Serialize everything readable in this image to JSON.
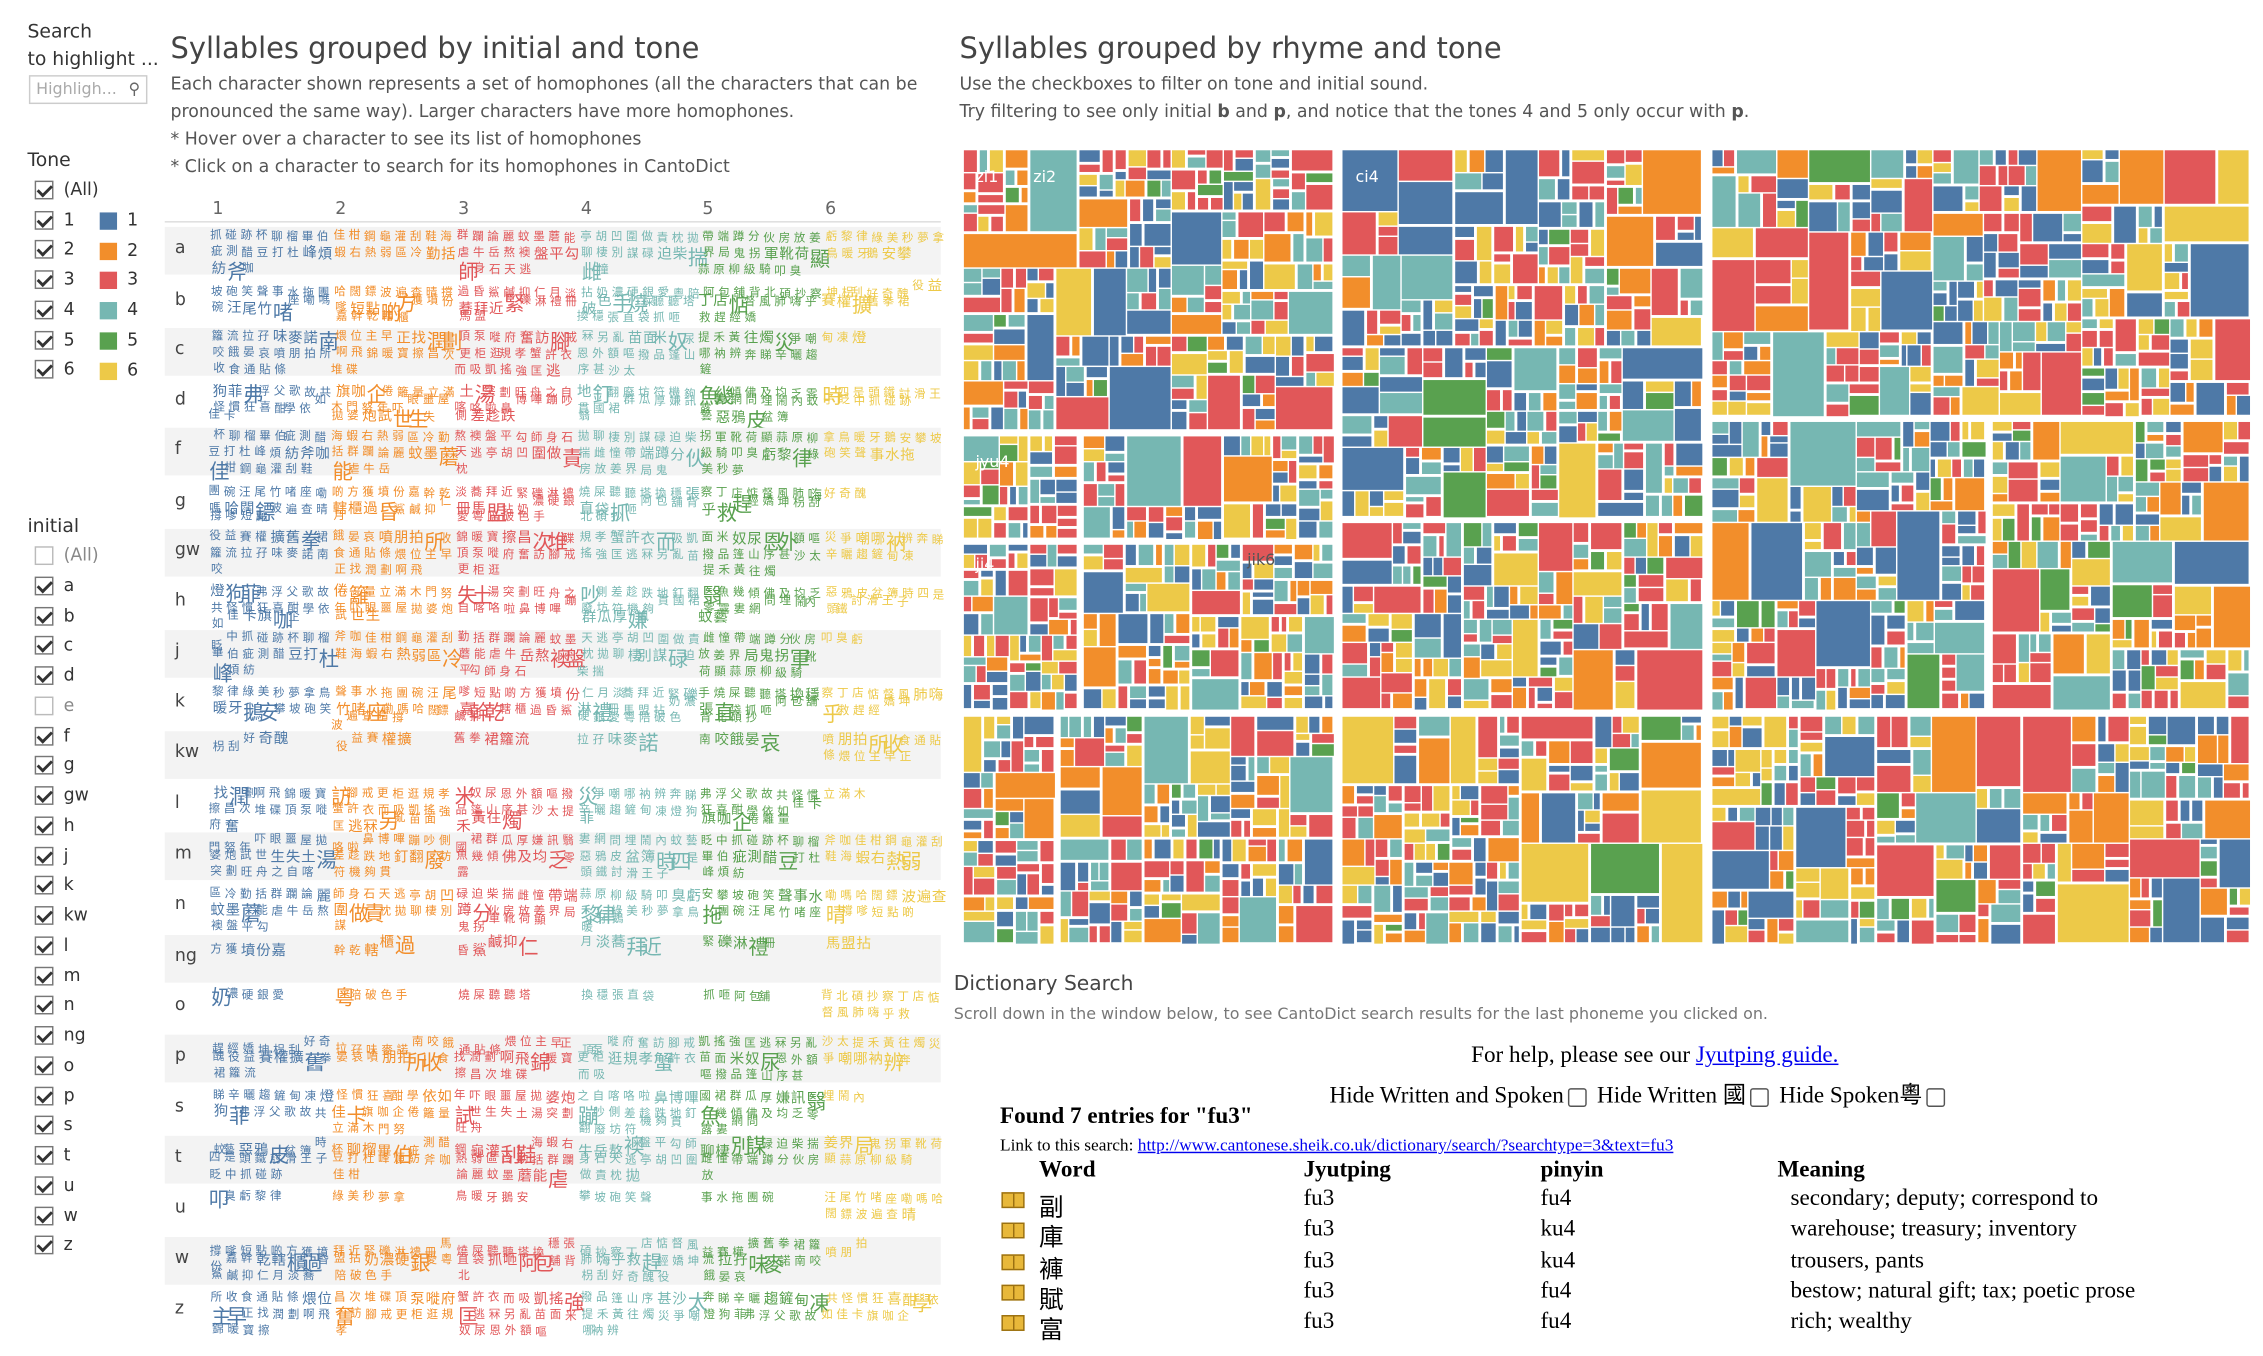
{
  "sidebar": {
    "search_title": "Search\nto highlight ...",
    "search_placeholder": "Highligh...",
    "tone_title": "Tone",
    "tone_items": [
      "(All)",
      "1",
      "2",
      "3",
      "4",
      "5",
      "6"
    ],
    "tone_legend": [
      {
        "label": "1",
        "color": "#4e79a7"
      },
      {
        "label": "2",
        "color": "#f28e2b"
      },
      {
        "label": "3",
        "color": "#e15759"
      },
      {
        "label": "4",
        "color": "#76b7b2"
      },
      {
        "label": "5",
        "color": "#59a14f"
      },
      {
        "label": "6",
        "color": "#edc948"
      }
    ],
    "initial_title": "initial",
    "initial_items": [
      {
        "label": "(All)",
        "checked": false
      },
      {
        "label": "a",
        "checked": true
      },
      {
        "label": "b",
        "checked": true
      },
      {
        "label": "c",
        "checked": true
      },
      {
        "label": "d",
        "checked": true
      },
      {
        "label": "e",
        "checked": false
      },
      {
        "label": "f",
        "checked": true
      },
      {
        "label": "g",
        "checked": true
      },
      {
        "label": "gw",
        "checked": true
      },
      {
        "label": "h",
        "checked": true
      },
      {
        "label": "j",
        "checked": true
      },
      {
        "label": "k",
        "checked": true
      },
      {
        "label": "kw",
        "checked": true
      },
      {
        "label": "l",
        "checked": true
      },
      {
        "label": "m",
        "checked": true
      },
      {
        "label": "n",
        "checked": true
      },
      {
        "label": "ng",
        "checked": true
      },
      {
        "label": "o",
        "checked": true
      },
      {
        "label": "p",
        "checked": true
      },
      {
        "label": "s",
        "checked": true
      },
      {
        "label": "t",
        "checked": true
      },
      {
        "label": "u",
        "checked": true
      },
      {
        "label": "w",
        "checked": true
      },
      {
        "label": "z",
        "checked": true
      }
    ]
  },
  "left_panel": {
    "title": "Syllables grouped by initial and tone",
    "desc": [
      "Each character shown represents a set of homophones (all the characters that can be",
      "pronounced the same way). Larger characters have more homophones.",
      "* Hover over a character to see its list of homophones",
      "* Click on a character to search for its homophones in CantoDict"
    ],
    "tone_headers": [
      "1",
      "2",
      "3",
      "4",
      "5",
      "6"
    ],
    "rows": [
      "a",
      "b",
      "c",
      "d",
      "f",
      "g",
      "gw",
      "h",
      "j",
      "k",
      "kw",
      "l",
      "m",
      "n",
      "ng",
      "o",
      "p",
      "s",
      "t",
      "u",
      "w",
      "z"
    ]
  },
  "right_panel": {
    "title": "Syllables grouped by rhyme and tone",
    "desc_1": "Use the checkboxes to filter on tone and initial sound.",
    "desc_2_pre": "Try filtering to see only initial ",
    "desc_2_b": "b",
    "desc_2_mid": " and ",
    "desc_2_p": "p",
    "desc_2_post": ", and notice that the tones 4 and 5 only occur with ",
    "desc_2_p2": "p",
    "desc_2_end": ".",
    "treemap_labels": [
      "zi1",
      "zi2",
      "ci4",
      "jyu4",
      "ji4",
      "jik6"
    ]
  },
  "dictionary": {
    "title": "Dictionary Search",
    "subtitle": "Scroll down in the window below, to see CantoDict search results for the last phoneme you clicked on.",
    "help_pre": "For help, please see our ",
    "help_link": "Jyutping guide.",
    "hide_written_spoken": "Hide Written and Spoken",
    "hide_written": "Hide Written 國",
    "hide_spoken": "Hide Spoken粵",
    "found": "Found 7 entries for \"fu3\"",
    "link_label": "Link to this search: ",
    "link_url": "http://www.cantonese.sheik.co.uk/dictionary/search/?searchtype=3&text=fu3",
    "columns": [
      "Word",
      "Jyutping",
      "pinyin",
      "Meaning"
    ],
    "entries": [
      {
        "word": "副",
        "jyutping": "fu3",
        "pinyin": "fu4",
        "meaning": "secondary; deputy; correspond to"
      },
      {
        "word": "庫",
        "jyutping": "fu3",
        "pinyin": "ku4",
        "meaning": "warehouse; treasury; inventory"
      },
      {
        "word": "褲",
        "jyutping": "fu3",
        "pinyin": "ku4",
        "meaning": "trousers, pants"
      },
      {
        "word": "賦",
        "jyutping": "fu3",
        "pinyin": "fu4",
        "meaning": "bestow; natural gift; tax; poetic prose"
      },
      {
        "word": "富",
        "jyutping": "fu3",
        "pinyin": "fu4",
        "meaning": "rich; wealthy"
      }
    ]
  }
}
